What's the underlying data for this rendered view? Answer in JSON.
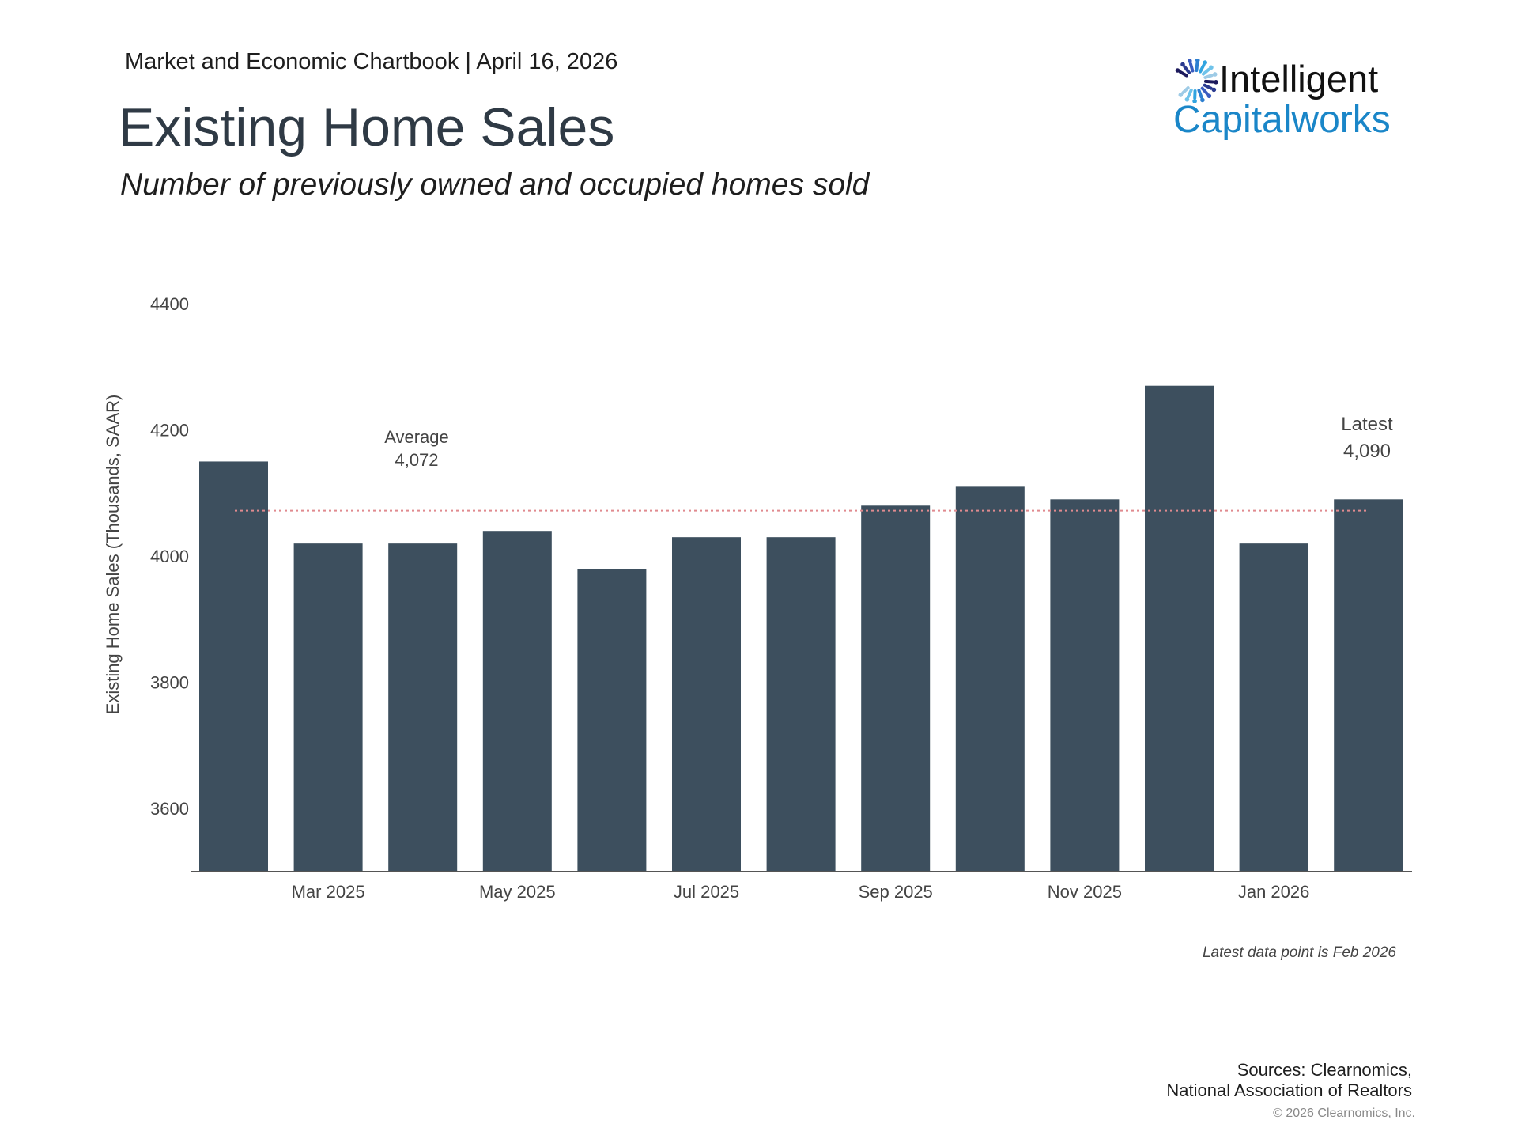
{
  "header": {
    "kicker": "Market and Economic Chartbook | April 16, 2026",
    "title": "Existing Home Sales",
    "subtitle": "Number of previously owned and occupied homes sold"
  },
  "logo": {
    "line1": "Intelligent",
    "line2": "Capitalworks"
  },
  "colors": {
    "bar": "#3d4f5e",
    "average_line": "#e08a8f",
    "brand_blue": "#1a86c8"
  },
  "chart_data": {
    "type": "bar",
    "title": "Existing Home Sales",
    "ylabel": "Existing Home Sales (Thousands, SAAR)",
    "xlabel": "",
    "ylim": [
      3500,
      4400
    ],
    "yticks": [
      3600,
      3800,
      4000,
      4200,
      4400
    ],
    "categories": [
      "Feb 2025",
      "Mar 2025",
      "Apr 2025",
      "May 2025",
      "Jun 2025",
      "Jul 2025",
      "Aug 2025",
      "Sep 2025",
      "Oct 2025",
      "Nov 2025",
      "Dec 2025",
      "Jan 2026",
      "Feb 2026"
    ],
    "xtick_labels": [
      {
        "index": 1,
        "label": "Mar 2025"
      },
      {
        "index": 3,
        "label": "May 2025"
      },
      {
        "index": 5,
        "label": "Jul 2025"
      },
      {
        "index": 7,
        "label": "Sep 2025"
      },
      {
        "index": 9,
        "label": "Nov 2025"
      },
      {
        "index": 11,
        "label": "Jan 2026"
      }
    ],
    "values": [
      4150,
      4020,
      4020,
      4040,
      3980,
      4030,
      4030,
      4080,
      4110,
      4090,
      4270,
      4020,
      4090
    ],
    "average": {
      "value": 4072,
      "label": "Average",
      "value_label": "4,072"
    },
    "latest": {
      "label": "Latest",
      "value_label": "4,090"
    },
    "grid": false,
    "legend": "none"
  },
  "footnote": "Latest data point is Feb 2026",
  "sources": {
    "line1": "Sources: Clearnomics,",
    "line2": "National Association of Realtors"
  },
  "copyright": "© 2026 Clearnomics, Inc."
}
